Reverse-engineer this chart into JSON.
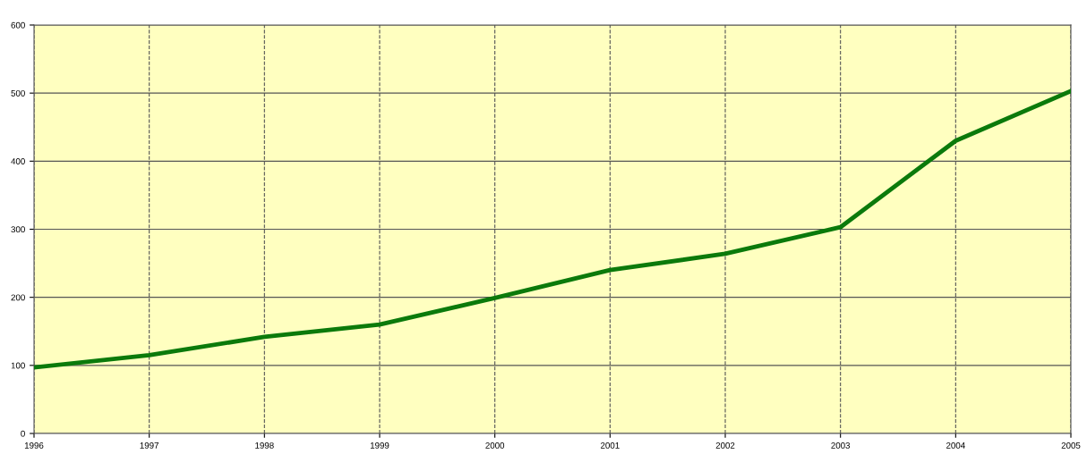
{
  "chart_data": {
    "type": "line",
    "x": [
      1996,
      1997,
      1998,
      1999,
      2000,
      2001,
      2002,
      2003,
      2004,
      2005
    ],
    "series": [
      {
        "color": "#0b7a0b",
        "values": [
          97,
          115,
          142,
          160,
          199,
          240,
          264,
          303,
          430,
          503
        ]
      }
    ],
    "xlim": [
      1996,
      2005
    ],
    "xticks": [
      1996,
      1997,
      1998,
      1999,
      2000,
      2001,
      2002,
      2003,
      2004,
      2005
    ],
    "ylim": [
      0,
      600
    ],
    "yticks": [
      0,
      100,
      200,
      300,
      400,
      500,
      600
    ],
    "grid": true,
    "marker": "none",
    "line_style": "solid"
  }
}
